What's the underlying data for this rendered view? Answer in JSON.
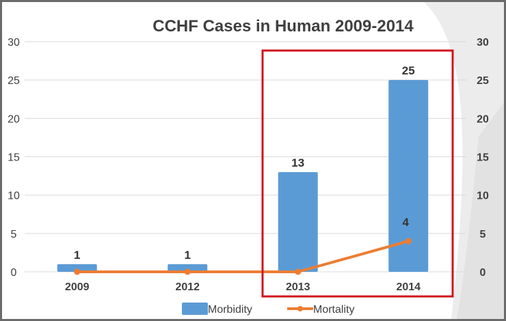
{
  "chart_data": {
    "type": "bar",
    "title": "CCHF Cases in Human 2009-2014",
    "categories": [
      "2009",
      "2012",
      "2013",
      "2014"
    ],
    "series": [
      {
        "name": "Morbidity",
        "kind": "bar",
        "color": "#5b9bd5",
        "values": [
          1,
          1,
          13,
          25
        ],
        "labels": [
          "1",
          "1",
          "13",
          "25"
        ]
      },
      {
        "name": "Mortality",
        "kind": "line",
        "color": "#ed7d31",
        "values": [
          0,
          0,
          0,
          4
        ],
        "labels": [
          "",
          "",
          "",
          "4"
        ]
      }
    ],
    "ylim": [
      0,
      30
    ],
    "yticks": [
      "0",
      "5",
      "10",
      "15",
      "20",
      "25",
      "30"
    ],
    "y2ticks": [
      "0",
      "5",
      "10",
      "15",
      "20",
      "25",
      "30"
    ],
    "xlabel": "",
    "ylabel": "",
    "grid": true,
    "legend_position": "bottom",
    "highlight_box_color": "#d0131b",
    "highlight_categories": [
      "2013",
      "2014"
    ]
  }
}
